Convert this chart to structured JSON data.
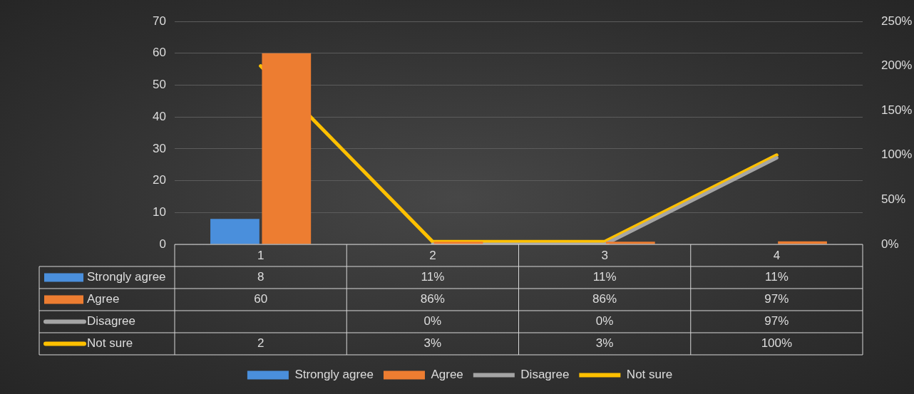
{
  "chart_data": {
    "type": "bar",
    "categories": [
      "1",
      "2",
      "3",
      "4"
    ],
    "series": [
      {
        "name": "Strongly agree",
        "color": "#4a8fdc",
        "values": [
          8,
          0.11,
          0.11,
          0.11
        ],
        "value_labels": [
          "8",
          "11%",
          "11%",
          "11%"
        ]
      },
      {
        "name": "Agree",
        "color": "#ed7d31",
        "values": [
          60,
          0.86,
          0.86,
          0.97
        ],
        "value_labels": [
          "60",
          "86%",
          "86%",
          "97%"
        ]
      },
      {
        "name": "Disagree",
        "type": "line",
        "axis": "y2",
        "color": "#a5a5a5",
        "values": [
          null,
          0,
          0,
          0.97
        ],
        "value_labels": [
          null,
          "0%",
          "0%",
          "97%"
        ]
      },
      {
        "name": "Not sure",
        "type": "line",
        "axis": "y2",
        "color": "#ffc000",
        "values": [
          2,
          0.03,
          0.03,
          1
        ],
        "value_labels": [
          "2",
          "3%",
          "3%",
          "100%"
        ]
      }
    ],
    "ylim": [
      0,
      70
    ],
    "yticks": [
      0,
      10,
      20,
      30,
      40,
      50,
      60,
      70
    ],
    "y2lim": [
      0,
      2.5
    ],
    "y2ticks": [
      {
        "value": 0,
        "label": "0%"
      },
      {
        "value": 0.5,
        "label": "50%"
      },
      {
        "value": 1,
        "label": "100%"
      },
      {
        "value": 1.5,
        "label": "150%"
      },
      {
        "value": 2,
        "label": "200%"
      },
      {
        "value": 2.5,
        "label": "250%"
      }
    ],
    "grid": "y",
    "legend": "bottom",
    "marker": "none"
  }
}
